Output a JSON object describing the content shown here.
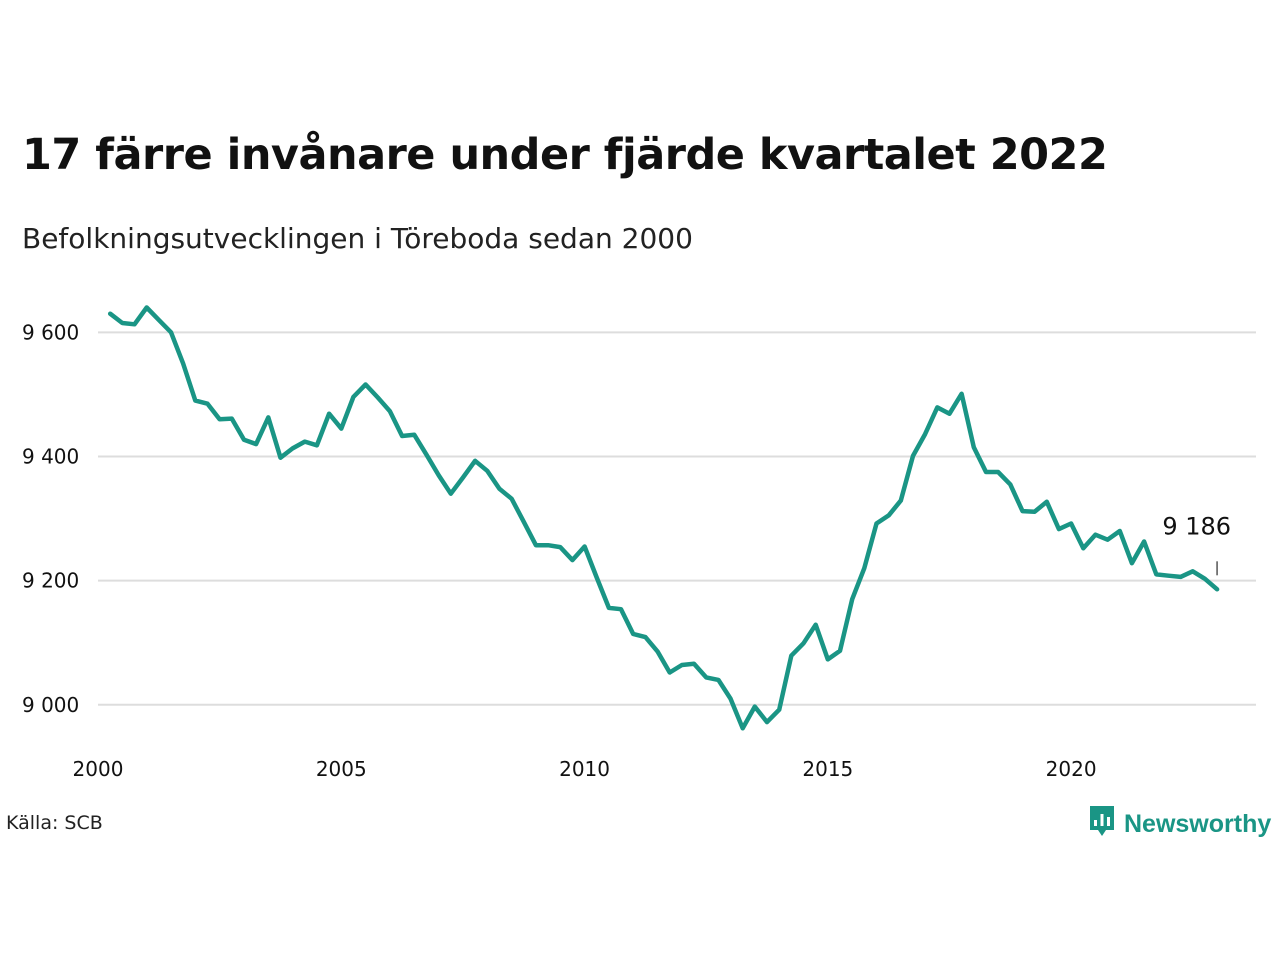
{
  "title": "17 färre invånare under fjärde kvartalet 2022",
  "subtitle": "Befolkningsutvecklingen i Töreboda sedan 2000",
  "source": "Källa: SCB",
  "brand": {
    "name": "Newsworthy",
    "icon": "newsworthy-logo-icon",
    "color": "#1a9585"
  },
  "colors": {
    "line": "#1a9585",
    "grid": "#dddddd",
    "text": "#111111"
  },
  "chart_data": {
    "type": "line",
    "title": "17 färre invånare under fjärde kvartalet 2022",
    "subtitle": "Befolkningsutvecklingen i Töreboda sedan 2000",
    "xlabel": "",
    "ylabel": "",
    "xlim": [
      2000,
      2023.8
    ],
    "ylim": [
      8940,
      9665
    ],
    "x_ticks": [
      2000,
      2005,
      2010,
      2015,
      2020
    ],
    "x_tick_labels": [
      "2000",
      "2005",
      "2010",
      "2015",
      "2020"
    ],
    "y_ticks": [
      9000,
      9200,
      9400,
      9600
    ],
    "y_tick_labels": [
      "9 000",
      "9 200",
      "9 400",
      "9 600"
    ],
    "grid": true,
    "legend": "none",
    "last_label": "9 186",
    "x": [
      2000.25,
      2000.5,
      2000.75,
      2001.0,
      2001.25,
      2001.5,
      2001.75,
      2002.0,
      2002.25,
      2002.5,
      2002.75,
      2003.0,
      2003.25,
      2003.5,
      2003.75,
      2004.0,
      2004.25,
      2004.5,
      2004.75,
      2005.0,
      2005.25,
      2005.5,
      2005.75,
      2006.0,
      2006.25,
      2006.5,
      2006.75,
      2007.0,
      2007.25,
      2007.5,
      2007.75,
      2008.0,
      2008.25,
      2008.5,
      2008.75,
      2009.0,
      2009.25,
      2009.5,
      2009.75,
      2010.0,
      2010.25,
      2010.5,
      2010.75,
      2011.0,
      2011.25,
      2011.5,
      2011.75,
      2012.0,
      2012.25,
      2012.5,
      2012.75,
      2013.0,
      2013.25,
      2013.5,
      2013.75,
      2014.0,
      2014.25,
      2014.5,
      2014.75,
      2015.0,
      2015.25,
      2015.5,
      2015.75,
      2016.0,
      2016.25,
      2016.5,
      2016.75,
      2017.0,
      2017.25,
      2017.5,
      2017.75,
      2018.0,
      2018.25,
      2018.5,
      2018.75,
      2019.0,
      2019.25,
      2019.5,
      2019.75,
      2020.0,
      2020.25,
      2020.5,
      2020.75,
      2021.0,
      2021.25,
      2021.5,
      2021.75,
      2022.0,
      2022.25,
      2022.5,
      2022.75,
      2023.0
    ],
    "series": [
      {
        "values": [
          9630,
          9615,
          9613,
          9640,
          9620,
          9600,
          9550,
          9490,
          9485,
          9460,
          9461,
          9427,
          9420,
          9463,
          9398,
          9413,
          9424,
          9418,
          9469,
          9445,
          9496,
          9516,
          9495,
          9473,
          9433,
          9435,
          9403,
          9370,
          9340,
          9366,
          9393,
          9377,
          9348,
          9332,
          9295,
          9257,
          9257,
          9254,
          9233,
          9255,
          9205,
          9156,
          9154,
          9114,
          9109,
          9086,
          9052,
          9064,
          9066,
          9044,
          9040,
          9010,
          8962,
          8997,
          8972,
          8992,
          9079,
          9099,
          9129,
          9073,
          9087,
          9170,
          9220,
          9292,
          9305,
          9329,
          9401,
          9436,
          9479,
          9469,
          9501,
          9415,
          9375,
          9375,
          9355,
          9312,
          9311,
          9327,
          9283,
          9292,
          9252,
          9274,
          9266,
          9280,
          9228,
          9263,
          9210,
          9208,
          9206,
          9215,
          9203,
          9186
        ]
      }
    ]
  }
}
